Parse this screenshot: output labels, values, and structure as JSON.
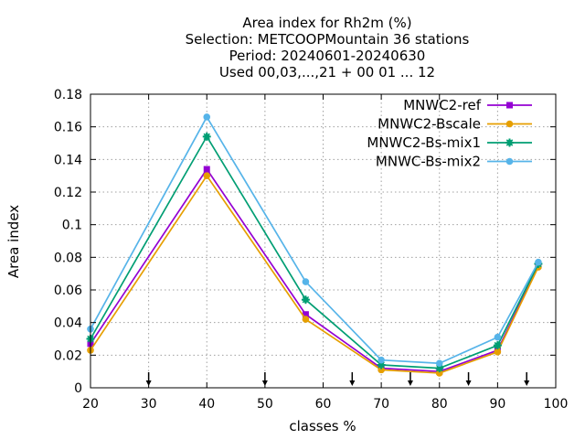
{
  "chart_data": {
    "type": "line",
    "title_lines": [
      "Area index  for Rh2m (%)",
      "Selection: METCOOPMountain     36 stations",
      "Period: 20240601-20240630",
      "Used 00,03,...,21 + 00 01 ... 12"
    ],
    "xlabel": "classes %",
    "ylabel": "Area index",
    "xlim": [
      20,
      100
    ],
    "ylim": [
      0,
      0.18
    ],
    "xticks": [
      20,
      30,
      40,
      50,
      60,
      70,
      80,
      90,
      100
    ],
    "yticks": [
      0,
      0.02,
      0.04,
      0.06,
      0.08,
      0.1,
      0.12,
      0.14,
      0.16,
      0.18
    ],
    "xtick_labels": [
      "20",
      "30",
      "40",
      "50",
      "60",
      "70",
      "80",
      "90",
      "100"
    ],
    "ytick_labels": [
      "0",
      "0.02",
      "0.04",
      "0.06",
      "0.08",
      "0.1",
      "0.12",
      "0.14",
      "0.16",
      "0.18"
    ],
    "grid": true,
    "legend_position": "top-right",
    "x": [
      20,
      40,
      57,
      70,
      80,
      90,
      97
    ],
    "series": [
      {
        "name": "MNWC2-ref",
        "color": "#9400d3",
        "marker": "square",
        "values": [
          0.027,
          0.134,
          0.045,
          0.012,
          0.01,
          0.023,
          0.075
        ]
      },
      {
        "name": "MNWC2-Bscale",
        "color": "#e69f00",
        "marker": "circle",
        "values": [
          0.023,
          0.13,
          0.042,
          0.011,
          0.009,
          0.022,
          0.074
        ]
      },
      {
        "name": "MNWC2-Bs-mix1",
        "color": "#009e73",
        "marker": "star",
        "values": [
          0.03,
          0.154,
          0.054,
          0.014,
          0.012,
          0.026,
          0.076
        ]
      },
      {
        "name": "MNWC-Bs-mix2",
        "color": "#56b4e9",
        "marker": "circle",
        "values": [
          0.036,
          0.166,
          0.065,
          0.017,
          0.015,
          0.031,
          0.077
        ]
      }
    ],
    "arrow_markers_x": [
      30,
      50,
      65,
      75,
      85,
      95
    ]
  }
}
